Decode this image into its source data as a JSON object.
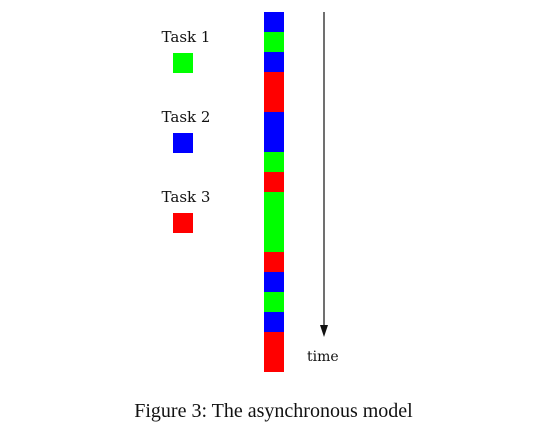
{
  "colors": {
    "task1": "#00ff00",
    "task2": "#0000ff",
    "task3": "#ff0000",
    "axis": "#111111"
  },
  "legend": [
    {
      "label": "Task 1",
      "color": "#00ff00"
    },
    {
      "label": "Task 2",
      "color": "#0000ff"
    },
    {
      "label": "Task 3",
      "color": "#ff0000"
    }
  ],
  "timeline": {
    "direction": "top-to-bottom",
    "slots": [
      "task2",
      "task1",
      "task2",
      "task3",
      "task3",
      "task2",
      "task2",
      "task1",
      "task3",
      "task1",
      "task1",
      "task1",
      "task3",
      "task2",
      "task1",
      "task2",
      "task3",
      "task3"
    ]
  },
  "axis_label": "time",
  "caption": "Figure 3: The asynchronous model"
}
